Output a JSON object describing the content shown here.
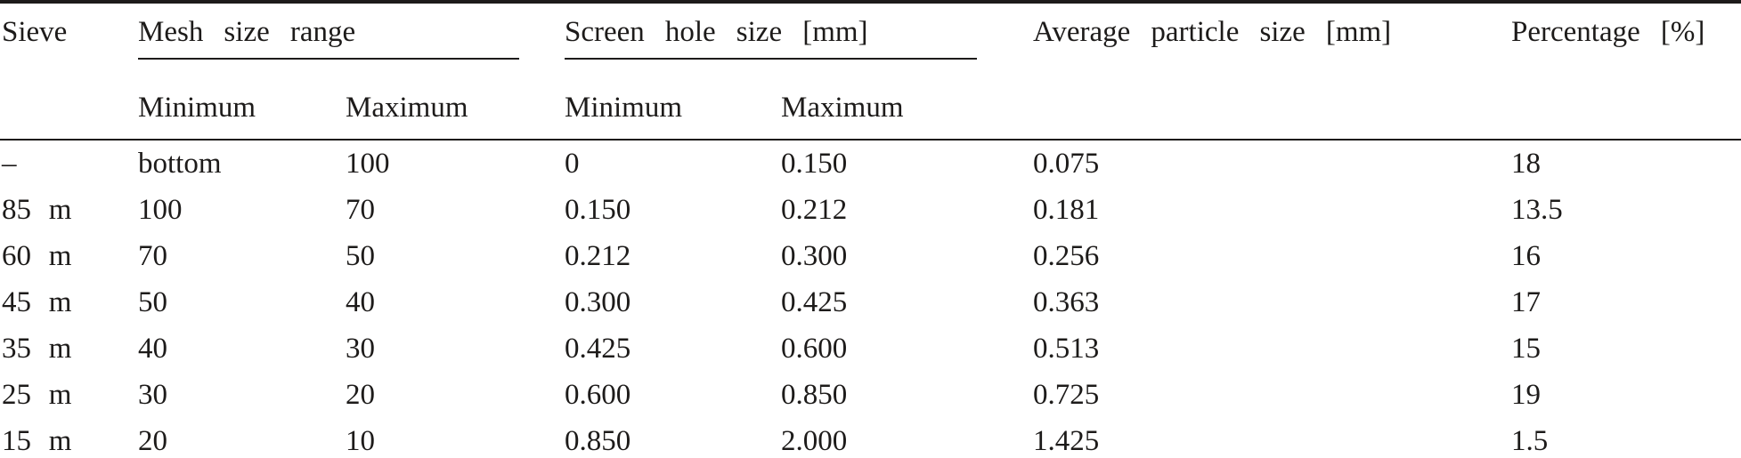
{
  "table": {
    "header": {
      "sieve": "Sieve",
      "mesh_group": "Mesh size range",
      "screen_group": "Screen hole size [mm]",
      "average": "Average particle size [mm]",
      "percentage": "Percentage [%]",
      "minimum": "Minimum",
      "maximum": "Maximum"
    },
    "rows": [
      [
        "–",
        "bottom",
        "100",
        "0",
        "0.150",
        "0.075",
        "18"
      ],
      [
        "85 m",
        "100",
        "70",
        "0.150",
        "0.212",
        "0.181",
        "13.5"
      ],
      [
        "60 m",
        "70",
        "50",
        "0.212",
        "0.300",
        "0.256",
        "16"
      ],
      [
        "45 m",
        "50",
        "40",
        "0.300",
        "0.425",
        "0.363",
        "17"
      ],
      [
        "35 m",
        "40",
        "30",
        "0.425",
        "0.600",
        "0.513",
        "15"
      ],
      [
        "25 m",
        "30",
        "20",
        "0.600",
        "0.850",
        "0.725",
        "19"
      ],
      [
        "15 m",
        "20",
        "10",
        "0.850",
        "2.000",
        "1.425",
        "1.5"
      ]
    ]
  }
}
